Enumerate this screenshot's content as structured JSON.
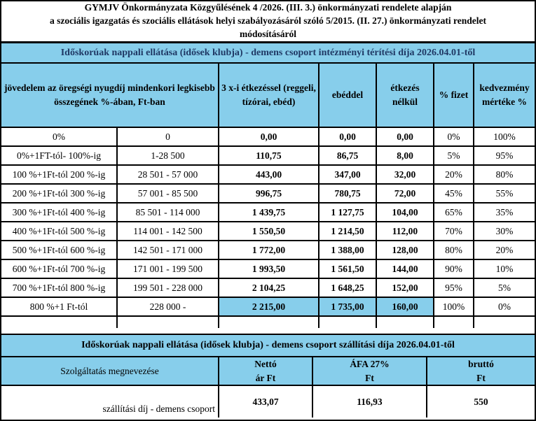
{
  "colors": {
    "section_bg": "#87CEEB",
    "band1_text": "#1F3864",
    "band2_text": "#000000",
    "border": "#000000"
  },
  "title": {
    "line1": "GYMJV Önkormányzata Közgyűlésének 4 /2026. (III. 3.) önkormányzati rendelete alapján",
    "line2": "a szociális igazgatás és szociális ellátások helyi szabályozásáról szóló 5/2015. (II. 27.) önkormányzati rendelet",
    "line3": "módosításáról"
  },
  "fee_table": {
    "section_header": "Időskorúak nappali ellátása (idősek klubja) - demens csoport intézményi térítési díja 2026.04.01-től",
    "headers": {
      "income": "jövedelem az öregségi nyugdíj mindenkori legkisebb összegének %-ában, Ft-ban",
      "meals3": "3 x-i étkezéssel (reggeli, tízórai, ebéd)",
      "lunch": "ebéddel",
      "no_meals": "étkezés nélkül",
      "pays_pct": "% fizet",
      "discount_pct": "kedvezmény mértéke %"
    },
    "rows": [
      [
        "0%",
        "0",
        "0,00",
        "0,00",
        "0,00",
        "0%",
        "100%"
      ],
      [
        "0%+1FT-tól- 100%-ig",
        "1-28 500",
        "110,75",
        "86,75",
        "8,00",
        "5%",
        "95%"
      ],
      [
        "100 %+1Ft-tól 200 %-ig",
        "28 501 - 57 000",
        "443,00",
        "347,00",
        "32,00",
        "20%",
        "80%"
      ],
      [
        "200 %+1Ft-tól 300 %-ig",
        "57 001 - 85 500",
        "996,75",
        "780,75",
        "72,00",
        "45%",
        "55%"
      ],
      [
        "300 %+1Ft-tól 400 %-ig",
        "85 501 - 114 000",
        "1 439,75",
        "1 127,75",
        "104,00",
        "65%",
        "35%"
      ],
      [
        "400 %+1Ft-tól 500 %-ig",
        "114 001 - 142 500",
        "1 550,50",
        "1 214,50",
        "112,00",
        "70%",
        "30%"
      ],
      [
        "500 %+1Ft-tól 600 %-ig",
        "142 501 - 171 000",
        "1 772,00",
        "1 388,00",
        "128,00",
        "80%",
        "20%"
      ],
      [
        "600 %+1Ft-tól 700 %-ig",
        "171 001 - 199 500",
        "1 993,50",
        "1 561,50",
        "144,00",
        "90%",
        "10%"
      ],
      [
        "700 %+1Ft-tól 800 %-ig",
        "199 501 - 228 000",
        "2 104,25",
        "1 648,25",
        "152,00",
        "95%",
        "5%"
      ],
      [
        "800 %+1 Ft-tól",
        "228 000 -",
        "2 215,00",
        "1 735,00",
        "160,00",
        "100%",
        "0%"
      ]
    ]
  },
  "transport_table": {
    "section_header": "Időskorúak nappali ellátása (idősek klubja) - demens csoport szállítási díja 2026.04.01-től",
    "headers": {
      "service": "Szolgáltatás megnevezése",
      "net": "Nettó\nár Ft",
      "vat": "ÁFA 27%\nFt",
      "gross": "bruttó\nFt"
    },
    "row": {
      "service": "szállítási díj - demens csoport",
      "net": "433,07",
      "vat": "116,93",
      "gross": "550"
    }
  }
}
